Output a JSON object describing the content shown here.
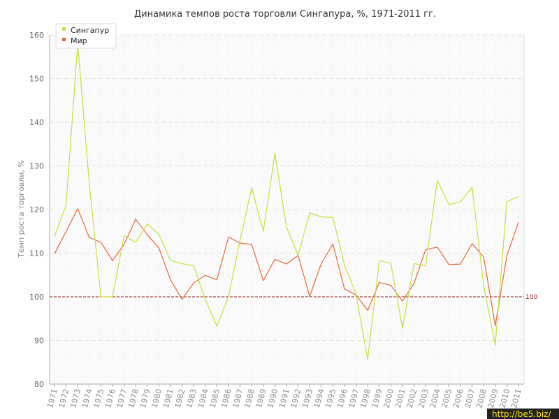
{
  "chart_data": {
    "type": "line",
    "title": "Динамика темпов роста торговли Сингапура, %, 1971-2011 гг.",
    "xlabel": "",
    "ylabel": "Темп роста торговли, %",
    "ylim": [
      80,
      160
    ],
    "yticks": [
      80,
      90,
      100,
      110,
      120,
      130,
      140,
      150,
      160
    ],
    "grid": true,
    "legend_position": "top-left",
    "x": [
      "1971",
      "1972",
      "1973",
      "1974",
      "1975",
      "1976",
      "1977",
      "1978",
      "1979",
      "1980",
      "1981",
      "1982",
      "1983",
      "1984",
      "1985",
      "1986",
      "1987",
      "1988",
      "1989",
      "1990",
      "1991",
      "1992",
      "1993",
      "1994",
      "1995",
      "1996",
      "1997",
      "1998",
      "1999",
      "2000",
      "2001",
      "2002",
      "2003",
      "2004",
      "2005",
      "2006",
      "2007",
      "2008",
      "2009",
      "2010",
      "2011"
    ],
    "series": [
      {
        "name": "Сингапур",
        "color": "#c5e03a",
        "values": [
          113.8,
          121.0,
          158.0,
          126.0,
          100.0,
          100.0,
          114.0,
          112.5,
          116.7,
          114.3,
          108.3,
          107.6,
          107.1,
          99.4,
          93.3,
          100.0,
          113.0,
          125.0,
          115.0,
          132.8,
          116.0,
          109.5,
          119.2,
          118.3,
          118.2,
          107.3,
          100.6,
          85.7,
          108.3,
          107.7,
          92.8,
          107.6,
          107.1,
          126.7,
          121.1,
          121.8,
          125.1,
          102.5,
          88.9,
          121.8,
          123.0
        ]
      },
      {
        "name": "Мир",
        "color": "#e06a3a",
        "values": [
          109.8,
          115.0,
          120.2,
          113.6,
          112.5,
          108.3,
          112.0,
          117.8,
          114.2,
          111.2,
          103.9,
          99.4,
          103.2,
          104.9,
          103.9,
          113.7,
          112.3,
          112.0,
          103.7,
          108.6,
          107.5,
          109.5,
          100.1,
          107.6,
          112.1,
          101.8,
          100.4,
          96.9,
          103.3,
          102.6,
          99.0,
          103.1,
          110.8,
          111.4,
          107.4,
          107.5,
          112.2,
          109.1,
          93.4,
          109.4,
          117.1
        ]
      }
    ],
    "reference_line": {
      "value": 100,
      "label": "100",
      "color": "#8b1a1a"
    }
  },
  "watermark": {
    "text": "http://be5.biz/",
    "bg_color": "#222222",
    "text_color": "#ffe600"
  }
}
